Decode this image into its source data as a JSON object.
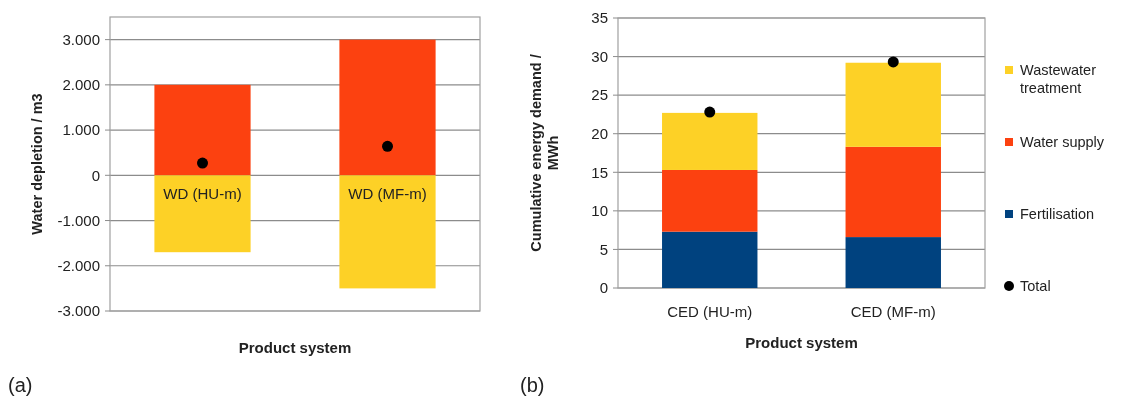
{
  "chart_data": [
    {
      "type": "bar",
      "stacked": true,
      "categories": [
        "WD (HU-m)",
        "WD (MF-m)"
      ],
      "xlabel": "Product system",
      "ylabel": "Water depletion / m3",
      "series": [
        {
          "color": "#fc4110",
          "values": [
            2000,
            3000
          ]
        },
        {
          "color": "#fdd126",
          "values": [
            -1700,
            -2500
          ]
        },
        {
          "type": "scatter",
          "color": "#000000",
          "x": [
            "WD (HU-m)",
            "WD (MF-m)"
          ],
          "values": [
            270,
            640
          ]
        }
      ],
      "marker": "circle",
      "ylim": [
        -3000,
        3500
      ],
      "yticks": [
        {
          "value": -3000,
          "label": "-3.000"
        },
        {
          "value": -2000,
          "label": "-2.000"
        },
        {
          "value": -1000,
          "label": "-1.000"
        },
        0,
        {
          "value": 1000,
          "label": "1.000"
        },
        {
          "value": 2000,
          "label": "2.000"
        },
        {
          "value": 3000,
          "label": "3.000"
        }
      ],
      "grid": "y",
      "legend": false,
      "annotations": [
        "(a)"
      ]
    },
    {
      "type": "bar",
      "stacked": true,
      "categories": [
        "CED (HU-m)",
        "CED (MF-m)"
      ],
      "xlabel": "Product system",
      "ylabel": "Cumulative energy demand / MWh",
      "series": [
        {
          "name": "Fertilisation",
          "color": "#00427f",
          "values": [
            7.3,
            6.6
          ]
        },
        {
          "name": "Water supply",
          "color": "#fc4110",
          "values": [
            8.0,
            11.7
          ]
        },
        {
          "name": "Wastewater treatment",
          "color": "#fdd126",
          "values": [
            7.4,
            10.9
          ]
        },
        {
          "type": "scatter",
          "name": "Total",
          "color": "#000000",
          "x": [
            "CED (HU-m)",
            "CED (MF-m)"
          ],
          "values": [
            22.8,
            29.3
          ]
        }
      ],
      "marker": "circle",
      "ylim": [
        0,
        35
      ],
      "yticks": [
        0,
        5,
        10,
        15,
        20,
        25,
        30,
        35
      ],
      "grid": "y",
      "legend": "right",
      "annotations": [
        "(b)"
      ]
    }
  ]
}
